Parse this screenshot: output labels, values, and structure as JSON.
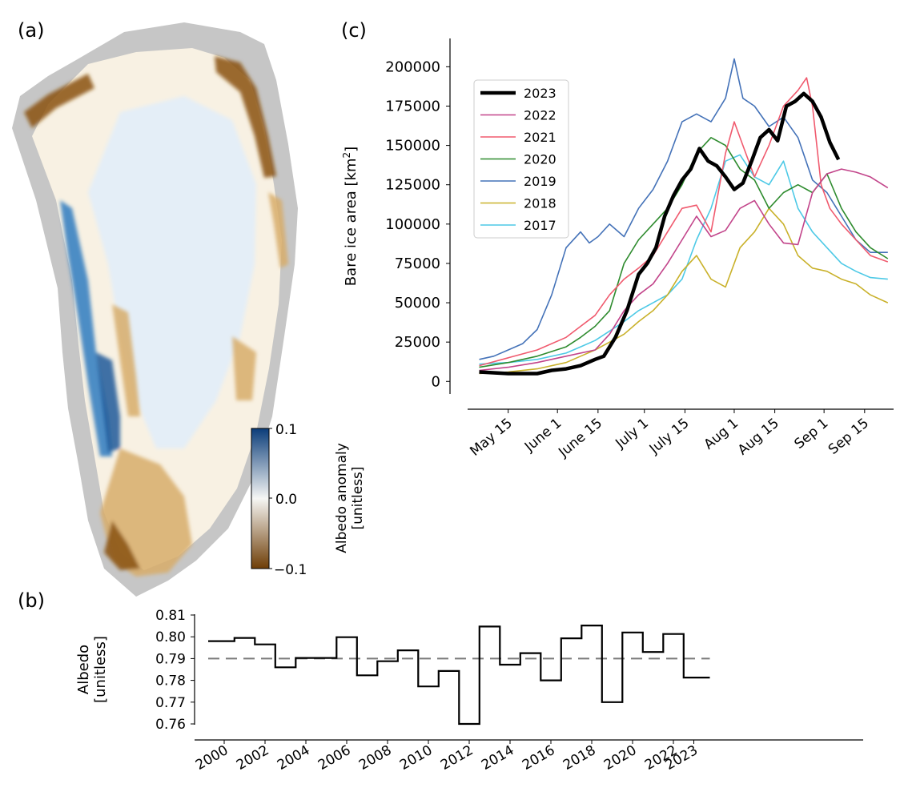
{
  "panels": {
    "a": {
      "label": "(a)"
    },
    "b": {
      "label": "(b)"
    },
    "c": {
      "label": "(c)"
    }
  },
  "colorbar": {
    "label_line1": "Albedo anomaly",
    "label_line2": "[unitless]",
    "ticks": [
      "0.1",
      "0.0",
      "−0.1"
    ],
    "colors": {
      "high": "#0b3d7a",
      "mid": "#f6f6f4",
      "low": "#6e3d06"
    }
  },
  "map_colors": {
    "land": "#c6c6c6",
    "ice": "#f8f1e3",
    "interior": "#e4eef7",
    "dark_margin": "#8a5212",
    "light_margin": "#d7ad6a",
    "blue_margin": "#2f7bbf"
  },
  "chart_data": [
    {
      "id": "b",
      "type": "line",
      "step": true,
      "ylabel_line1": "Albedo",
      "ylabel_line2": "[unitless]",
      "ylim": [
        0.76,
        0.81
      ],
      "yticks": [
        "0.81",
        "0.80",
        "0.79",
        "0.78",
        "0.77",
        "0.76"
      ],
      "xticks": [
        "2000",
        "2002",
        "2004",
        "2006",
        "2008",
        "2010",
        "2012",
        "2014",
        "2016",
        "2018",
        "2020",
        "2022",
        "2023"
      ],
      "x": [
        2000,
        2001,
        2002,
        2003,
        2004,
        2005,
        2006,
        2007,
        2008,
        2009,
        2010,
        2011,
        2012,
        2013,
        2014,
        2015,
        2016,
        2017,
        2018,
        2019,
        2020,
        2021,
        2022,
        2023
      ],
      "values": [
        0.798,
        0.7995,
        0.7965,
        0.786,
        0.7903,
        0.7903,
        0.7998,
        0.7823,
        0.7888,
        0.7938,
        0.7772,
        0.7843,
        0.76,
        0.8047,
        0.7872,
        0.7925,
        0.78,
        0.7993,
        0.8052,
        0.77,
        0.802,
        0.793,
        0.8013,
        0.7813
      ],
      "mean": 0.79,
      "colors": {
        "line": "#000000",
        "mean": "#7a7a7a"
      }
    },
    {
      "id": "c",
      "type": "line",
      "ylabel": "Bare ice area [km²]",
      "ylabel_main": "Bare ice area [km",
      "ylabel_sup": "2",
      "ylabel_end": "]",
      "ylim": [
        -8000,
        218000
      ],
      "yticks": [
        "200000",
        "175000",
        "150000",
        "125000",
        "100000",
        "75000",
        "50000",
        "25000",
        "0"
      ],
      "xticks": [
        "May 15",
        "June 1",
        "June 15",
        "July 1",
        "July 15",
        "Aug 1",
        "Aug 15",
        "Sep 1",
        "Sep 15"
      ],
      "xtick_days": [
        135,
        152,
        166,
        182,
        196,
        213,
        227,
        244,
        258
      ],
      "xlim": [
        121,
        268
      ],
      "series": [
        {
          "name": "2023",
          "color": "#000000",
          "days": [
            125,
            130,
            135,
            140,
            145,
            150,
            155,
            160,
            165,
            168,
            172,
            176,
            180,
            183,
            186,
            189,
            192,
            195,
            198,
            201,
            204,
            207,
            210,
            213,
            216,
            219,
            222,
            225,
            228,
            231,
            234,
            237,
            240,
            243,
            246,
            249
          ],
          "values": [
            6000,
            5500,
            5000,
            5000,
            5000,
            7000,
            8000,
            10000,
            14000,
            16000,
            28000,
            45000,
            68000,
            75000,
            85000,
            105000,
            118000,
            128000,
            135000,
            148000,
            140000,
            137000,
            130000,
            122000,
            126000,
            140000,
            155000,
            160000,
            153000,
            175000,
            178000,
            183000,
            178000,
            168000,
            152000,
            141000
          ]
        },
        {
          "name": "2022",
          "color": "#c2448a",
          "days": [
            125,
            135,
            145,
            155,
            165,
            170,
            175,
            180,
            185,
            190,
            195,
            200,
            205,
            210,
            215,
            220,
            225,
            230,
            235,
            240,
            245,
            250,
            255,
            260,
            266
          ],
          "values": [
            7000,
            9000,
            12000,
            16000,
            20000,
            30000,
            45000,
            55000,
            62000,
            75000,
            90000,
            105000,
            92000,
            96000,
            110000,
            115000,
            100000,
            88000,
            87000,
            120000,
            132000,
            135000,
            133000,
            130000,
            123000
          ]
        },
        {
          "name": "2021",
          "color": "#f05a6e",
          "days": [
            125,
            135,
            145,
            155,
            160,
            165,
            170,
            175,
            180,
            185,
            190,
            195,
            200,
            205,
            210,
            213,
            216,
            220,
            225,
            230,
            235,
            238,
            240,
            243,
            246,
            250,
            255,
            260,
            266
          ],
          "values": [
            10000,
            15000,
            20000,
            28000,
            35000,
            42000,
            55000,
            65000,
            72000,
            80000,
            95000,
            110000,
            112000,
            95000,
            145000,
            165000,
            150000,
            130000,
            150000,
            175000,
            185000,
            193000,
            175000,
            125000,
            110000,
            100000,
            90000,
            80000,
            76000
          ]
        },
        {
          "name": "2020",
          "color": "#2e8b2e",
          "days": [
            125,
            135,
            145,
            155,
            160,
            165,
            170,
            175,
            180,
            185,
            190,
            195,
            200,
            205,
            210,
            215,
            220,
            225,
            230,
            235,
            240,
            245,
            250,
            255,
            260,
            266
          ],
          "values": [
            9000,
            12000,
            16000,
            22000,
            28000,
            35000,
            45000,
            75000,
            90000,
            100000,
            110000,
            125000,
            145000,
            155000,
            150000,
            135000,
            128000,
            110000,
            120000,
            125000,
            120000,
            132000,
            110000,
            95000,
            85000,
            78000
          ]
        },
        {
          "name": "2019",
          "color": "#4472b8",
          "days": [
            125,
            130,
            135,
            140,
            145,
            150,
            155,
            160,
            163,
            166,
            170,
            175,
            180,
            185,
            190,
            195,
            200,
            205,
            210,
            213,
            216,
            220,
            225,
            230,
            235,
            240,
            245,
            250,
            255,
            260,
            266
          ],
          "values": [
            14000,
            16000,
            20000,
            24000,
            33000,
            55000,
            85000,
            95000,
            88000,
            92000,
            100000,
            92000,
            110000,
            122000,
            140000,
            165000,
            170000,
            165000,
            180000,
            205000,
            180000,
            175000,
            162000,
            168000,
            155000,
            128000,
            120000,
            105000,
            90000,
            82000,
            82000
          ]
        },
        {
          "name": "2018",
          "color": "#c9b12a",
          "days": [
            125,
            135,
            145,
            155,
            160,
            165,
            170,
            175,
            180,
            185,
            190,
            195,
            200,
            205,
            210,
            215,
            220,
            225,
            230,
            235,
            240,
            245,
            250,
            255,
            260,
            266
          ],
          "values": [
            5000,
            6000,
            8000,
            12000,
            16000,
            20000,
            25000,
            30000,
            38000,
            45000,
            55000,
            70000,
            80000,
            65000,
            60000,
            85000,
            95000,
            110000,
            100000,
            80000,
            72000,
            70000,
            65000,
            62000,
            55000,
            50000
          ]
        },
        {
          "name": "2017",
          "color": "#4dc9e6",
          "days": [
            125,
            135,
            145,
            155,
            160,
            165,
            170,
            175,
            180,
            185,
            190,
            195,
            200,
            205,
            210,
            215,
            220,
            225,
            230,
            235,
            240,
            245,
            250,
            255,
            260,
            266
          ],
          "values": [
            11000,
            12000,
            14000,
            18000,
            22000,
            26000,
            32000,
            38000,
            45000,
            50000,
            55000,
            65000,
            90000,
            110000,
            140000,
            144000,
            130000,
            125000,
            140000,
            110000,
            95000,
            85000,
            75000,
            70000,
            66000,
            65000
          ]
        }
      ]
    }
  ]
}
